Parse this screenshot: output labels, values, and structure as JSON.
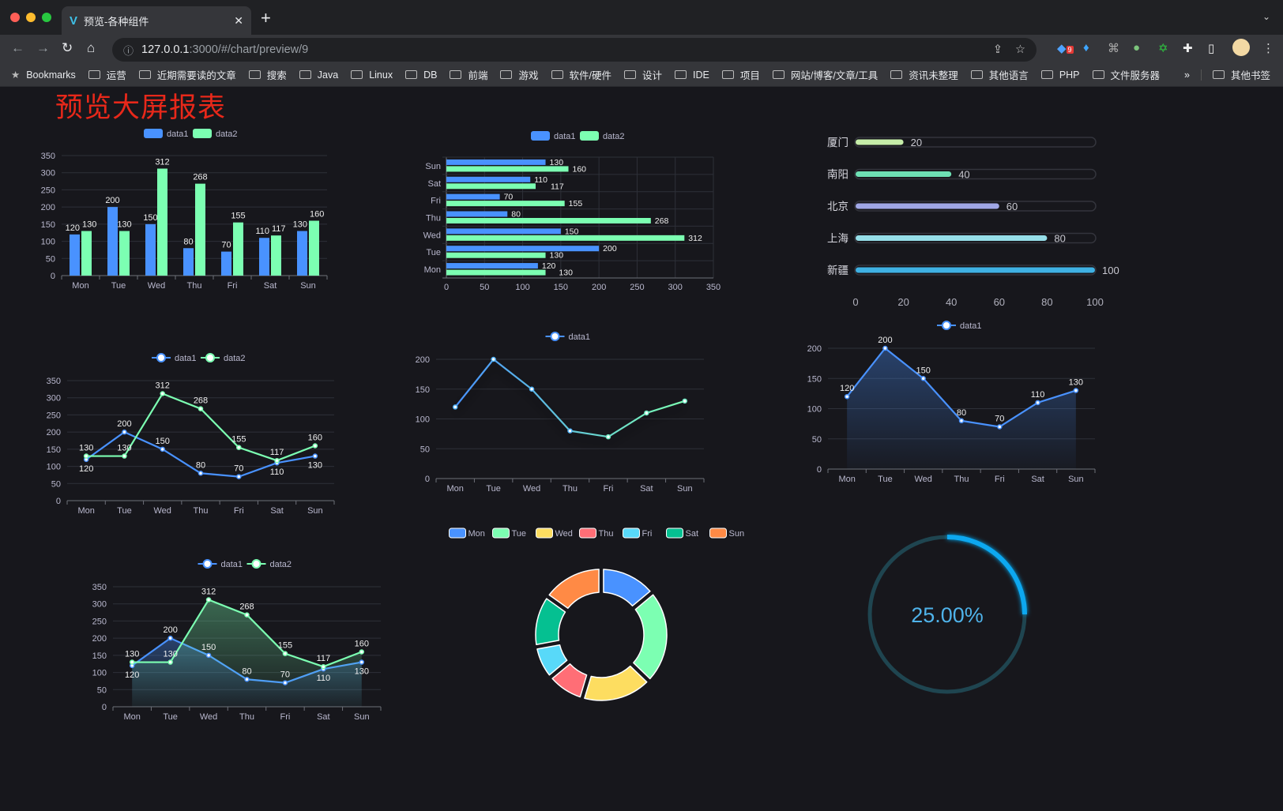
{
  "browser": {
    "tab_title": "预览-各种组件",
    "tab_close": "✕",
    "new_tab": "+",
    "url_host": "127.0.0.1",
    "url_rest": ":3000/#/chart/preview/9",
    "extension_badge": "9",
    "bookmarks": [
      "Bookmarks",
      "运营",
      "近期需要读的文章",
      "搜索",
      "Java",
      "Linux",
      "DB",
      "前端",
      "游戏",
      "软件/硬件",
      "设计",
      "IDE",
      "项目",
      "网站/博客/文章/工具",
      "资讯未整理",
      "其他语言",
      "PHP",
      "文件服务器"
    ],
    "bookmarks_more": "»",
    "other_bookmarks": "其他书签"
  },
  "page": {
    "title": "预览大屏报表"
  },
  "colors": {
    "data1": "#4992ff",
    "data2": "#7cffb2",
    "title": "#e8281a",
    "gauge": "#09a8f0",
    "gauge_track": "#1f4550"
  },
  "chart_data": [
    {
      "type": "bar",
      "categories": [
        "Mon",
        "Tue",
        "Wed",
        "Thu",
        "Fri",
        "Sat",
        "Sun"
      ],
      "series": [
        {
          "name": "data1",
          "values": [
            120,
            200,
            150,
            80,
            70,
            110,
            130
          ]
        },
        {
          "name": "data2",
          "values": [
            130,
            130,
            312,
            268,
            155,
            117,
            160
          ]
        }
      ],
      "ylim": [
        0,
        350
      ],
      "yticks": [
        0,
        50,
        100,
        150,
        200,
        250,
        300,
        350
      ],
      "grid": true,
      "legend": "top"
    },
    {
      "type": "bar",
      "orientation": "horizontal",
      "categories": [
        "Mon",
        "Tue",
        "Wed",
        "Thu",
        "Fri",
        "Sat",
        "Sun"
      ],
      "series": [
        {
          "name": "data1",
          "values": [
            120,
            200,
            150,
            80,
            70,
            110,
            130
          ]
        },
        {
          "name": "data2",
          "values": [
            130,
            130,
            312,
            268,
            155,
            117,
            160
          ]
        }
      ],
      "xlim": [
        0,
        350
      ],
      "xticks": [
        0,
        50,
        100,
        150,
        200,
        250,
        300,
        350
      ],
      "grid": true,
      "legend": "top"
    },
    {
      "type": "bar",
      "orientation": "horizontal",
      "style": "progress",
      "categories": [
        "厦门",
        "南阳",
        "北京",
        "上海",
        "新疆"
      ],
      "values": [
        20,
        40,
        60,
        80,
        100
      ],
      "colors": [
        "#c6eda9",
        "#6ee0b4",
        "#a0a7e6",
        "#96dee8",
        "#3fb1e3"
      ],
      "xlim": [
        0,
        100
      ],
      "xticks": [
        0,
        20,
        40,
        60,
        80,
        100
      ]
    },
    {
      "type": "line",
      "categories": [
        "Mon",
        "Tue",
        "Wed",
        "Thu",
        "Fri",
        "Sat",
        "Sun"
      ],
      "series": [
        {
          "name": "data1",
          "values": [
            120,
            200,
            150,
            80,
            70,
            110,
            130
          ]
        },
        {
          "name": "data2",
          "values": [
            130,
            130,
            312,
            268,
            155,
            117,
            160
          ]
        }
      ],
      "ylim": [
        0,
        350
      ],
      "yticks": [
        0,
        50,
        100,
        150,
        200,
        250,
        300,
        350
      ],
      "grid": true,
      "legend": "top"
    },
    {
      "type": "line",
      "categories": [
        "Mon",
        "Tue",
        "Wed",
        "Thu",
        "Fri",
        "Sat",
        "Sun"
      ],
      "series": [
        {
          "name": "data1",
          "values": [
            120,
            200,
            150,
            80,
            70,
            110,
            130
          ]
        }
      ],
      "ylim": [
        0,
        200
      ],
      "yticks": [
        0,
        50,
        100,
        150,
        200
      ],
      "grid": true,
      "legend": "top",
      "gradient": [
        "#4992ff",
        "#7cffb2"
      ]
    },
    {
      "type": "area",
      "categories": [
        "Mon",
        "Tue",
        "Wed",
        "Thu",
        "Fri",
        "Sat",
        "Sun"
      ],
      "series": [
        {
          "name": "data1",
          "values": [
            120,
            200,
            150,
            80,
            70,
            110,
            130
          ]
        }
      ],
      "ylim": [
        0,
        200
      ],
      "yticks": [
        0,
        50,
        100,
        150,
        200
      ],
      "grid": true,
      "legend": "top"
    },
    {
      "type": "area",
      "categories": [
        "Mon",
        "Tue",
        "Wed",
        "Thu",
        "Fri",
        "Sat",
        "Sun"
      ],
      "series": [
        {
          "name": "data1",
          "values": [
            120,
            200,
            150,
            80,
            70,
            110,
            130
          ]
        },
        {
          "name": "data2",
          "values": [
            130,
            130,
            312,
            268,
            155,
            117,
            160
          ]
        }
      ],
      "ylim": [
        0,
        350
      ],
      "yticks": [
        0,
        50,
        100,
        150,
        200,
        250,
        300,
        350
      ],
      "grid": true,
      "legend": "top"
    },
    {
      "type": "pie",
      "style": "donut",
      "categories": [
        "Mon",
        "Tue",
        "Wed",
        "Thu",
        "Fri",
        "Sat",
        "Sun"
      ],
      "values": [
        120,
        200,
        150,
        80,
        70,
        110,
        130
      ],
      "colors": [
        "#4992ff",
        "#7cffb2",
        "#fddd60",
        "#ff6e76",
        "#58d9f9",
        "#05c091",
        "#ff8a45"
      ],
      "legend": "top"
    },
    {
      "type": "gauge",
      "value": 25,
      "label": "25.00%"
    }
  ]
}
